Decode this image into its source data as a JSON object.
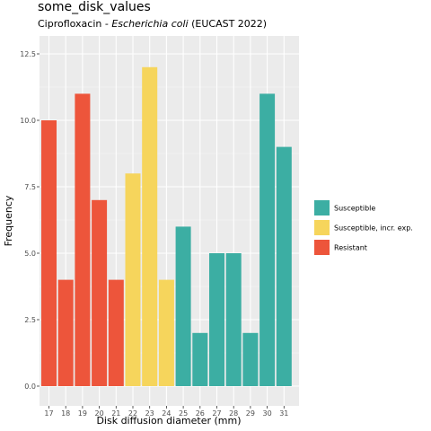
{
  "chart_data": {
    "type": "bar",
    "title": "some_disk_values",
    "subtitle": {
      "drug": "Ciprofloxacin",
      "separator": " - ",
      "organism": "Escherichia coli",
      "guideline": " (EUCAST 2022)"
    },
    "xlabel": "Disk diffusion diameter (mm)",
    "ylabel": "Frequency",
    "ylim": [
      0,
      12.5
    ],
    "yticks": [
      0,
      2.5,
      5,
      7.5,
      10,
      12.5
    ],
    "ytick_labels": [
      "0.0",
      "2.5",
      "5.0",
      "7.5",
      "10.0",
      "12.5"
    ],
    "grid": true,
    "legend_position": "right",
    "categories": [
      "17",
      "18",
      "19",
      "20",
      "21",
      "22",
      "23",
      "24",
      "25",
      "26",
      "27",
      "28",
      "29",
      "30",
      "31"
    ],
    "values": [
      10,
      4,
      11,
      7,
      4,
      8,
      12,
      4,
      6,
      2,
      5,
      5,
      2,
      11,
      9
    ],
    "groups": [
      "R",
      "R",
      "R",
      "R",
      "R",
      "I",
      "I",
      "I",
      "S",
      "S",
      "S",
      "S",
      "S",
      "S",
      "S"
    ],
    "legend": [
      {
        "key": "S",
        "label": "Susceptible",
        "color": "#3CAEA3"
      },
      {
        "key": "I",
        "label": "Susceptible, incr. exp.",
        "color": "#F6D55C"
      },
      {
        "key": "R",
        "label": "Resistant",
        "color": "#ED553B"
      }
    ]
  }
}
